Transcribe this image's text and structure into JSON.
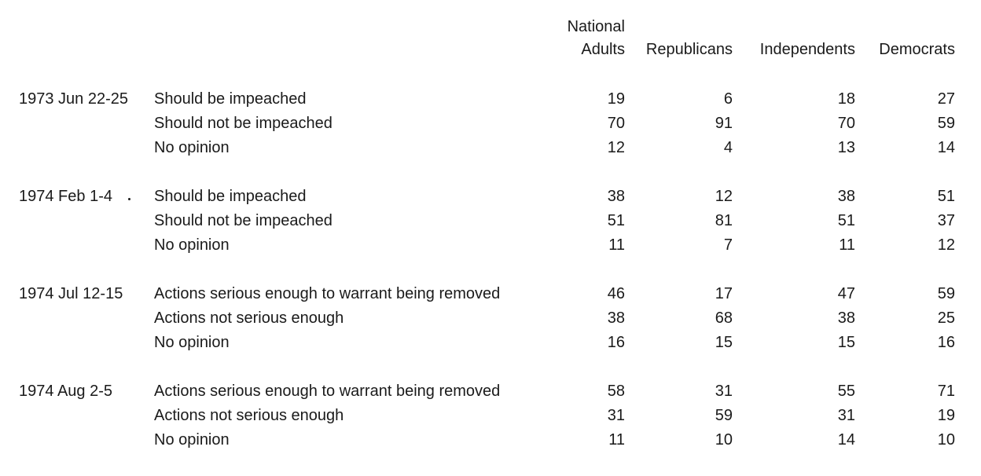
{
  "chart_data": {
    "type": "table",
    "columns": [
      "National Adults",
      "Republicans",
      "Independents",
      "Democrats"
    ],
    "header_lines": [
      [
        "National",
        "Adults"
      ],
      [
        "Republicans"
      ],
      [
        "Independents"
      ],
      [
        "Democrats"
      ]
    ],
    "groups": [
      {
        "date": "1973 Jun 22-25",
        "rows": [
          {
            "label": "Should be impeached",
            "values": [
              19,
              6,
              18,
              27
            ]
          },
          {
            "label": "Should not be impeached",
            "values": [
              70,
              91,
              70,
              59
            ]
          },
          {
            "label": "No opinion",
            "values": [
              12,
              4,
              13,
              14
            ]
          }
        ]
      },
      {
        "date": "1974 Feb 1-4",
        "rows": [
          {
            "label": "Should be impeached",
            "values": [
              38,
              12,
              38,
              51
            ]
          },
          {
            "label": "Should not be impeached",
            "values": [
              51,
              81,
              51,
              37
            ]
          },
          {
            "label": "No opinion",
            "values": [
              11,
              7,
              11,
              12
            ]
          }
        ]
      },
      {
        "date": "1974 Jul 12-15",
        "rows": [
          {
            "label": "Actions serious enough to warrant being removed",
            "values": [
              46,
              17,
              47,
              59
            ]
          },
          {
            "label": "Actions not serious enough",
            "values": [
              38,
              68,
              38,
              25
            ]
          },
          {
            "label": "No opinion",
            "values": [
              16,
              15,
              15,
              16
            ]
          }
        ]
      },
      {
        "date": "1974 Aug 2-5",
        "rows": [
          {
            "label": "Actions serious enough to warrant being removed",
            "values": [
              58,
              31,
              55,
              71
            ]
          },
          {
            "label": "Actions not serious enough",
            "values": [
              31,
              59,
              31,
              19
            ]
          },
          {
            "label": "No opinion",
            "values": [
              11,
              10,
              14,
              10
            ]
          }
        ]
      }
    ]
  }
}
